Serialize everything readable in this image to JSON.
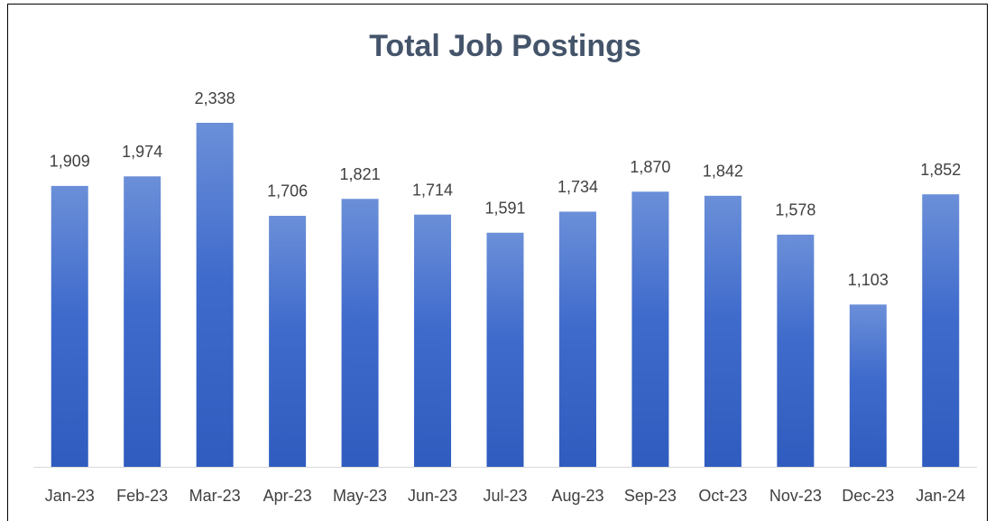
{
  "chart_data": {
    "type": "bar",
    "title": "Total Job Postings",
    "categories": [
      "Jan-23",
      "Feb-23",
      "Mar-23",
      "Apr-23",
      "May-23",
      "Jun-23",
      "Jul-23",
      "Aug-23",
      "Sep-23",
      "Oct-23",
      "Nov-23",
      "Dec-23",
      "Jan-24"
    ],
    "values": [
      1909,
      1974,
      2338,
      1706,
      1821,
      1714,
      1591,
      1734,
      1870,
      1842,
      1578,
      1103,
      1852
    ],
    "value_labels": [
      "1,909",
      "1,974",
      "2,338",
      "1,706",
      "1,821",
      "1,714",
      "1,591",
      "1,734",
      "1,870",
      "1,842",
      "1,578",
      "1,103",
      "1,852"
    ],
    "color": "#3b66c6"
  }
}
